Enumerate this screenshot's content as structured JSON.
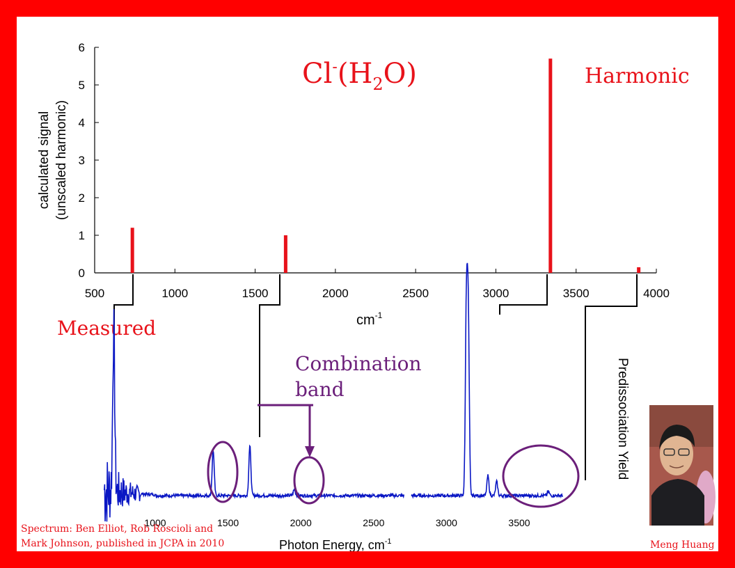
{
  "title": {
    "base": "Cl",
    "sup": "-",
    "mid": "(H",
    "sub": "2",
    "end": "O)"
  },
  "labels": {
    "harmonic": "Harmonic",
    "measured": "Measured",
    "combination_line1": "Combination",
    "combination_line2": "band",
    "credit_line1": "Spectrum: Ben Elliot, Rob Roscioli and",
    "credit_line2": "Mark Johnson, published in JCPA in 2010",
    "photo_caption": "Meng Huang"
  },
  "colors": {
    "frame": "#ff0000",
    "sticks": "#e8121a",
    "spectrum": "#0a17c4",
    "annotation": "#6b1f7a",
    "axis": "#000000"
  },
  "chart_data": [
    {
      "type": "bar",
      "ylabel_line1": "calculated signal",
      "ylabel_line2": "(unscaled harmonic)",
      "xlabel_base": "cm",
      "xlabel_sup": "-1",
      "xlim": [
        500,
        4000
      ],
      "ylim": [
        0,
        6
      ],
      "xticks": [
        500,
        1000,
        1500,
        2000,
        2500,
        3000,
        3500,
        4000
      ],
      "yticks": [
        0,
        1,
        2,
        3,
        4,
        5,
        6
      ],
      "x": [
        735,
        1690,
        3340,
        3890
      ],
      "values": [
        1.2,
        1.0,
        5.7,
        0.15
      ]
    },
    {
      "type": "line",
      "xlabel_base": "Photon Energy, cm",
      "xlabel_sup": "-1",
      "ylabel": "Predissociation Yield",
      "xlim": [
        650,
        3800
      ],
      "xticks": [
        1000,
        1500,
        2000,
        2500,
        3000,
        3500
      ],
      "gap": [
        2710,
        2760
      ],
      "peaks": [
        {
          "x": 715,
          "height": 0.81
        },
        {
          "x": 1398,
          "height": 0.23
        },
        {
          "x": 1650,
          "height": 0.25
        },
        {
          "x": 1955,
          "height": 0.03
        },
        {
          "x": 3137,
          "height": 0.93
        },
        {
          "x": 3150,
          "height": 0.87
        },
        {
          "x": 3285,
          "height": 0.1
        },
        {
          "x": 3345,
          "height": 0.07
        },
        {
          "x": 3700,
          "height": 0.02
        }
      ]
    }
  ]
}
